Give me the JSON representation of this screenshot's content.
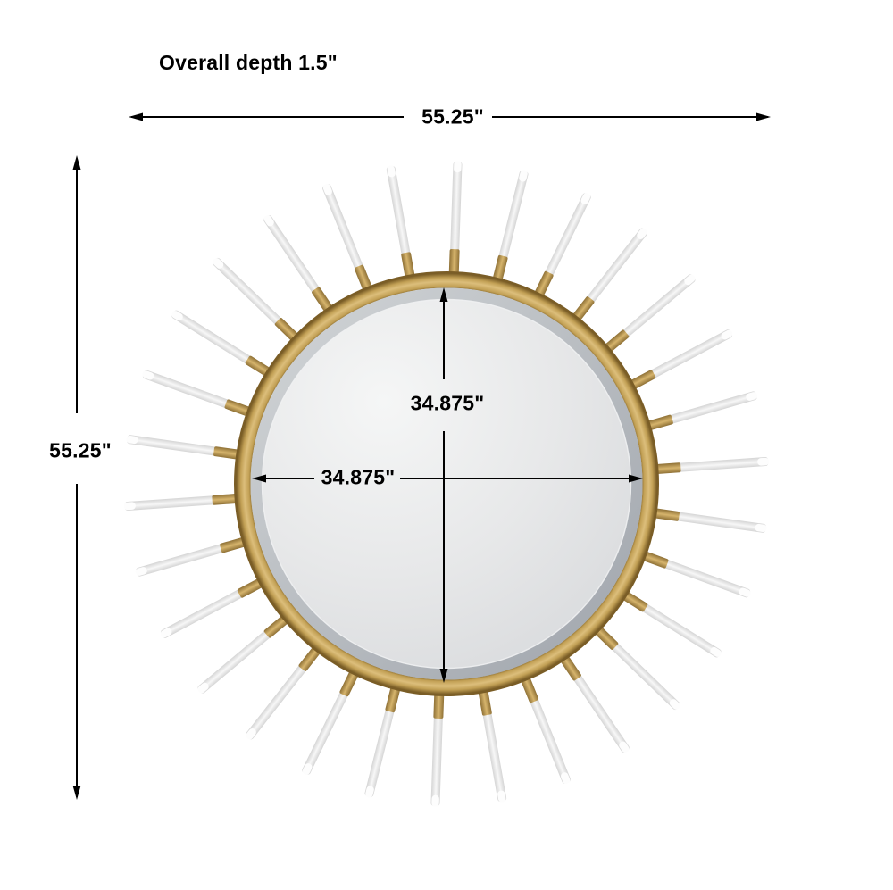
{
  "note": "Overall depth 1.5\"",
  "dimensions": {
    "overall_width": "55.25\"",
    "overall_height": "55.25\"",
    "mirror_width": "34.875\"",
    "mirror_height": "34.875\""
  },
  "sunburst": {
    "rod_count": 30,
    "angle_step_deg": 12,
    "angle_offset_deg": 2
  },
  "colors": {
    "background": "#ffffff",
    "text": "#000000",
    "line": "#000000",
    "gold_dark": "#7a5d26",
    "gold_mid": "#c2a055",
    "gold_light": "#dcbe7b",
    "peg_dark": "#8f7136",
    "peg_light": "#d6b46c",
    "rod_edge": "#d5d5d5",
    "rod_core": "#f7f7f7",
    "rod_tip": "#fdfdfd",
    "mirror_light": "#f5f6f6",
    "mirror_mid": "#e7e8e9",
    "mirror_edge": "#d2d4d7",
    "bevel_light": "#c6cacd",
    "bevel_dark": "#959ba3"
  }
}
